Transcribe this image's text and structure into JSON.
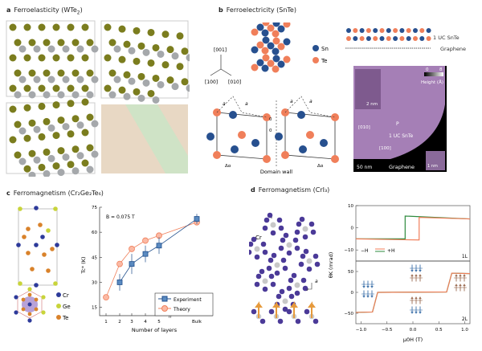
{
  "panel_a": {
    "letter": "a",
    "title": "Ferroelasticity (WTe",
    "sub": "2",
    "close": ")"
  },
  "panel_b": {
    "letter": "b",
    "title": "Ferroelectricity (SnTe)",
    "axes": [
      "[001]",
      "[100]",
      "[010]"
    ],
    "legend": [
      "Sn",
      "Te"
    ],
    "domain_wall": "Domain wall",
    "lattice_labels": [
      "a",
      "a",
      "a",
      "a",
      "Δα",
      "Δα",
      "0",
      "0"
    ],
    "side_labels": [
      "1 UC SnTe",
      "Graphene"
    ],
    "stm": {
      "scale_main": "50 nm",
      "scale_inset": "2 nm",
      "scale_inset2": "1 nm",
      "height_label": "Height (Å)",
      "height_min": "0",
      "height_max": "8",
      "p_label": "P",
      "film": "1 UC SnTe",
      "substrate": "Graphene",
      "dir1": "[010]",
      "dir2": "[100]"
    },
    "colors": {
      "sn": "#27508f",
      "te": "#f07f5a"
    }
  },
  "panel_c": {
    "letter": "c",
    "title": "Ferromagnetism (Cr₂Ge₂Te₆)",
    "legend": [
      "Cr",
      "Ge",
      "Te"
    ],
    "colors": {
      "cr": "#2d3a9a",
      "ge": "#c8d43a",
      "te": "#d9822b"
    }
  },
  "panel_d": {
    "letter": "d",
    "title": "Ferromagnetism (CrI₃)",
    "atom_labels": [
      "I",
      "Cr"
    ],
    "axis_labels": [
      "b",
      "a"
    ]
  },
  "chart_data": [
    {
      "type": "line",
      "title": "",
      "annotation": "B = 0.075 T",
      "xlabel": "Number of layers",
      "ylabel": "Tc* (K)",
      "categories": [
        "1",
        "2",
        "3",
        "4",
        "5",
        "Bulk"
      ],
      "yticks": [
        "15",
        "30",
        "45",
        "60",
        "75"
      ],
      "ylim": [
        10,
        75
      ],
      "legend_position": "bottom-right",
      "series": [
        {
          "name": "Experiment",
          "color": "#1f4e8c",
          "values": [
            null,
            30,
            41,
            47,
            52,
            68
          ],
          "errors": [
            null,
            5,
            6,
            5,
            5,
            3
          ]
        },
        {
          "name": "Theory",
          "color": "#f07f5a",
          "values": [
            21,
            41,
            50,
            55,
            58,
            66
          ]
        }
      ]
    },
    {
      "type": "line",
      "title": "1L",
      "xlabel": "μ0H (T)",
      "ylabel": "θK (mrad)",
      "xlim": [
        -1.1,
        1.1
      ],
      "ylim": [
        -15,
        10
      ],
      "yticks": [
        "10",
        "0",
        "−10"
      ],
      "legend": [
        "−H",
        "+H"
      ],
      "series": [
        {
          "name": "−H",
          "color": "#2e8b3e",
          "x": [
            -1.1,
            -0.15,
            -0.15,
            1.1
          ],
          "y": [
            -5,
            -5,
            5.3,
            4
          ]
        },
        {
          "name": "+H",
          "color": "#f07f5a",
          "x": [
            -1.1,
            0.12,
            0.12,
            1.1
          ],
          "y": [
            -5,
            -5.5,
            4.7,
            4
          ]
        }
      ]
    },
    {
      "type": "line",
      "title": "2L",
      "xlabel": "μ0H (T)",
      "ylabel": "θK (mrad)",
      "xlim": [
        -1.1,
        1.1
      ],
      "ylim": [
        -75,
        75
      ],
      "xticks": [
        "−1.0",
        "−0.5",
        "0.0",
        "0.5",
        "1.0"
      ],
      "yticks": [
        "50",
        "0",
        "−50"
      ],
      "series": [
        {
          "name": "−H",
          "color": "#2e8b3e",
          "x": [
            -1.1,
            -0.78,
            -0.68,
            0.65,
            0.75,
            1.1
          ],
          "y": [
            -48,
            -47,
            0,
            1,
            46,
            45
          ]
        },
        {
          "name": "+H",
          "color": "#f07f5a",
          "x": [
            -1.1,
            -0.78,
            -0.68,
            0.65,
            0.75,
            1.1
          ],
          "y": [
            -48,
            -47,
            0,
            1,
            46,
            45
          ]
        }
      ]
    }
  ]
}
